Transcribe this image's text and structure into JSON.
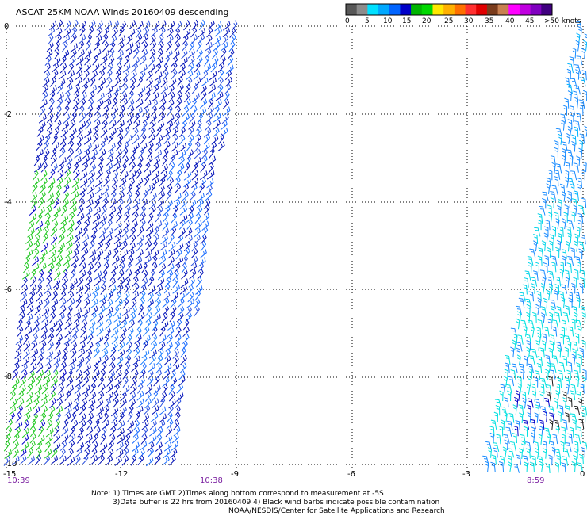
{
  "title": "ASCAT 25KM NOAA Winds 20160409 descending",
  "legend": {
    "colors": [
      "#585858",
      "#8c8c8c",
      "#00e0ff",
      "#00a8ff",
      "#0064ff",
      "#0000c8",
      "#00b400",
      "#00d800",
      "#ffe800",
      "#ffb000",
      "#ff7000",
      "#ff3030",
      "#e00000",
      "#7a3c1c",
      "#c88050",
      "#ff00ff",
      "#c000e0",
      "#8000c0",
      "#400080"
    ],
    "labels": [
      "0",
      "5",
      "10",
      "15",
      "20",
      "25",
      "30",
      "35",
      "40",
      "45",
      ">50 knots"
    ]
  },
  "y_axis": [
    "0",
    "-2",
    "-4",
    "-6",
    "-8",
    "-10"
  ],
  "x_axis": [
    "-15",
    "-12",
    "-9",
    "-6",
    "-3",
    "0"
  ],
  "times": [
    "10:39",
    "10:38",
    "8:59"
  ],
  "notes": [
    "Note: 1) Times are GMT 2)Times along bottom correspond to measurement at -5S",
    "3)Data buffer is 22 hrs from 20160409 4) Black wind barbs indicate possible contamination",
    "NOAA/NESDIS/Center for Satellite Applications and Research"
  ]
}
